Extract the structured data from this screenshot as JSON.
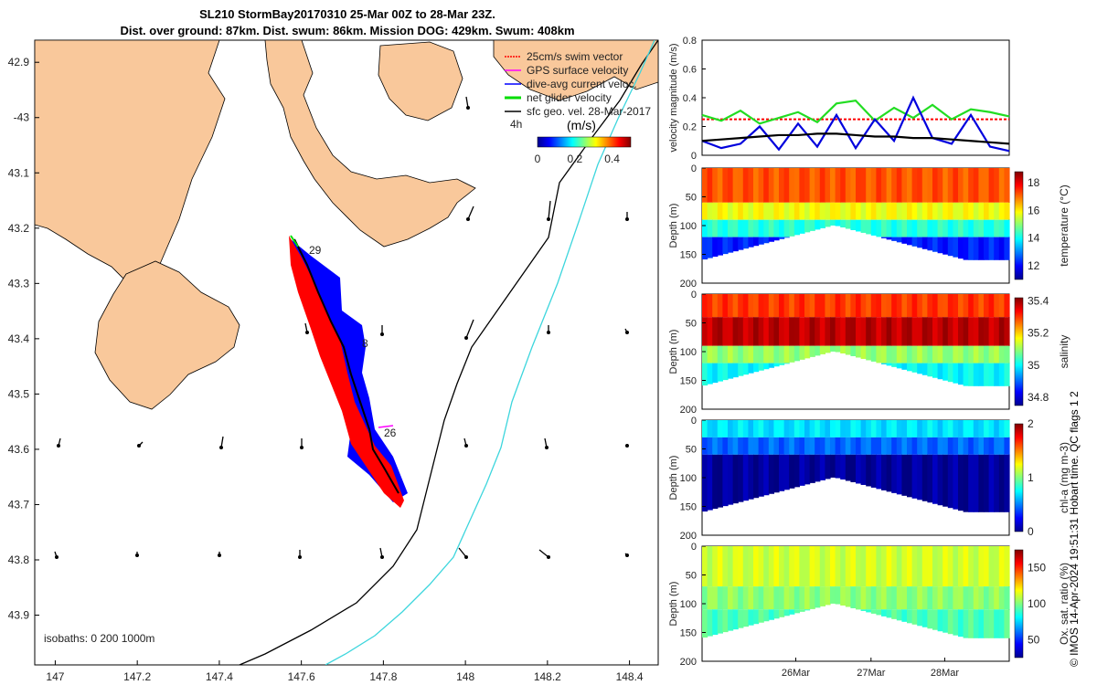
{
  "title": {
    "line1": "SL210 StormBay20170310 25-Mar 00Z to 28-Mar 23Z.",
    "line2": "Dist. over ground: 87km. Dist. swum: 86km. Mission DOG: 429km. Swum: 408km"
  },
  "map": {
    "lat_ticks": [
      "42.9",
      "-43",
      "43.1",
      "43.2",
      "43.3",
      "43.4",
      "43.5",
      "43.6",
      "43.7",
      "43.8",
      "43.9"
    ],
    "lon_ticks": [
      "147",
      "147.2",
      "147.4",
      "147.6",
      "147.8",
      "148",
      "148.2",
      "148.4"
    ],
    "lat_range": [
      -43.99,
      -42.86
    ],
    "lon_range": [
      146.95,
      148.47
    ],
    "isobaths_label": "isobaths: 0   200  1000m",
    "day_labels": [
      "29",
      "8",
      "26"
    ],
    "scale_label": "4h",
    "legend": [
      {
        "label": "25cm/s swim vector",
        "color": "#ff0000"
      },
      {
        "label": "GPS surface velocity",
        "color": "#ff00ff"
      },
      {
        "label": "dive-avg current veloc.",
        "color": "#0000ff"
      },
      {
        "label": "net glider velocity",
        "color": "#00dd00"
      },
      {
        "label": "sfc geo. vel. 28-Mar-2017",
        "color": "#000000"
      }
    ],
    "colorbar": {
      "label": "(m/s)",
      "ticks": [
        "0",
        "0.2",
        "0.4"
      ],
      "range": [
        0,
        0.5
      ]
    },
    "land_color": "#f9c89b",
    "isobath_200_color": "#000000",
    "isobath_1000_color": "#3dd6dd"
  },
  "chart_data": [
    {
      "type": "line",
      "title": "",
      "ylabel": "velocity magnitude (m/s)",
      "ylim": [
        0,
        0.8
      ],
      "yticks": [
        "0",
        "0.2",
        "0.4",
        "0.6",
        "0.8"
      ],
      "x": [
        0,
        0.25,
        0.5,
        0.75,
        1.0,
        1.25,
        1.5,
        1.75,
        2.0,
        2.25,
        2.5,
        2.75,
        3.0,
        3.25,
        3.5,
        3.75,
        4.0
      ],
      "series": [
        {
          "name": "swim speed",
          "color": "#ff0000",
          "values": [
            0.25,
            0.25,
            0.25,
            0.25,
            0.25,
            0.25,
            0.25,
            0.25,
            0.25,
            0.25,
            0.25,
            0.25,
            0.25,
            0.25,
            0.25,
            0.25,
            0.25
          ]
        },
        {
          "name": "net glider velocity",
          "color": "#22dd22",
          "values": [
            0.28,
            0.24,
            0.31,
            0.22,
            0.26,
            0.3,
            0.23,
            0.36,
            0.38,
            0.24,
            0.33,
            0.26,
            0.35,
            0.25,
            0.32,
            0.3,
            0.27
          ]
        },
        {
          "name": "dive-avg current",
          "color": "#0000dd",
          "values": [
            0.1,
            0.05,
            0.08,
            0.2,
            0.04,
            0.22,
            0.06,
            0.28,
            0.05,
            0.25,
            0.1,
            0.4,
            0.12,
            0.08,
            0.28,
            0.06,
            0.03
          ]
        },
        {
          "name": "sfc geo. velocity",
          "color": "#000000",
          "values": [
            0.1,
            0.11,
            0.12,
            0.13,
            0.14,
            0.14,
            0.15,
            0.15,
            0.14,
            0.13,
            0.13,
            0.12,
            0.12,
            0.11,
            0.1,
            0.09,
            0.08
          ]
        }
      ]
    },
    {
      "type": "heatmap",
      "title": "",
      "ylabel": "Depth (m)",
      "yticks": [
        "0",
        "50",
        "100",
        "150",
        "200"
      ],
      "ylim": [
        200,
        0
      ],
      "xticks": [
        "26Mar",
        "27Mar",
        "28Mar"
      ],
      "colorbar_label": "temperature (°C)",
      "colorbar_ticks": [
        "12",
        "14",
        "16",
        "18"
      ],
      "colorbar_range": [
        11,
        18.8
      ],
      "layers": [
        {
          "depth_range": [
            0,
            60
          ],
          "value": 17.2
        },
        {
          "depth_range": [
            60,
            90
          ],
          "value": 15.8
        },
        {
          "depth_range": [
            90,
            120
          ],
          "value": 14.2
        },
        {
          "depth_range": [
            120,
            160
          ],
          "value": 12.2
        }
      ]
    },
    {
      "type": "heatmap",
      "title": "",
      "ylabel": "Depth (m)",
      "yticks": [
        "0",
        "50",
        "100",
        "150",
        "200"
      ],
      "ylim": [
        200,
        0
      ],
      "xticks": [
        "26Mar",
        "27Mar",
        "28Mar"
      ],
      "colorbar_label": "salinity",
      "colorbar_ticks": [
        "34.8",
        "35",
        "35.2",
        "35.4"
      ],
      "colorbar_range": [
        34.75,
        35.42
      ],
      "layers": [
        {
          "depth_range": [
            0,
            40
          ],
          "value": 35.3
        },
        {
          "depth_range": [
            40,
            90
          ],
          "value": 35.38
        },
        {
          "depth_range": [
            90,
            120
          ],
          "value": 35.1
        },
        {
          "depth_range": [
            120,
            160
          ],
          "value": 35.0
        }
      ]
    },
    {
      "type": "heatmap",
      "title": "",
      "ylabel": "Depth (m)",
      "yticks": [
        "0",
        "50",
        "100",
        "150",
        "200"
      ],
      "ylim": [
        200,
        0
      ],
      "xticks": [
        "26Mar",
        "27Mar",
        "28Mar"
      ],
      "colorbar_label": "chl-a (mg m-3)",
      "colorbar_ticks": [
        "0",
        "1",
        "2"
      ],
      "colorbar_range": [
        0,
        2
      ],
      "layers": [
        {
          "depth_range": [
            0,
            30
          ],
          "value": 0.7
        },
        {
          "depth_range": [
            30,
            60
          ],
          "value": 0.45
        },
        {
          "depth_range": [
            60,
            160
          ],
          "value": 0.05
        }
      ]
    },
    {
      "type": "heatmap",
      "title": "",
      "ylabel": "Depth (m)",
      "yticks": [
        "0",
        "50",
        "100",
        "150",
        "200"
      ],
      "ylim": [
        200,
        0
      ],
      "xticks": [
        "26Mar",
        "27Mar",
        "28Mar"
      ],
      "colorbar_label": "Ox. sat. ratio (%)",
      "colorbar_ticks": [
        "50",
        "100",
        "150"
      ],
      "colorbar_range": [
        25,
        175
      ],
      "layers": [
        {
          "depth_range": [
            0,
            70
          ],
          "value": 112
        },
        {
          "depth_range": [
            70,
            110
          ],
          "value": 102
        },
        {
          "depth_range": [
            110,
            160
          ],
          "value": 92
        }
      ]
    }
  ],
  "side_text": {
    "qc_flags": "Hobart time. QC flags 1  2",
    "credit": "© IMOS 14-Apr-2024 19:51:31"
  }
}
